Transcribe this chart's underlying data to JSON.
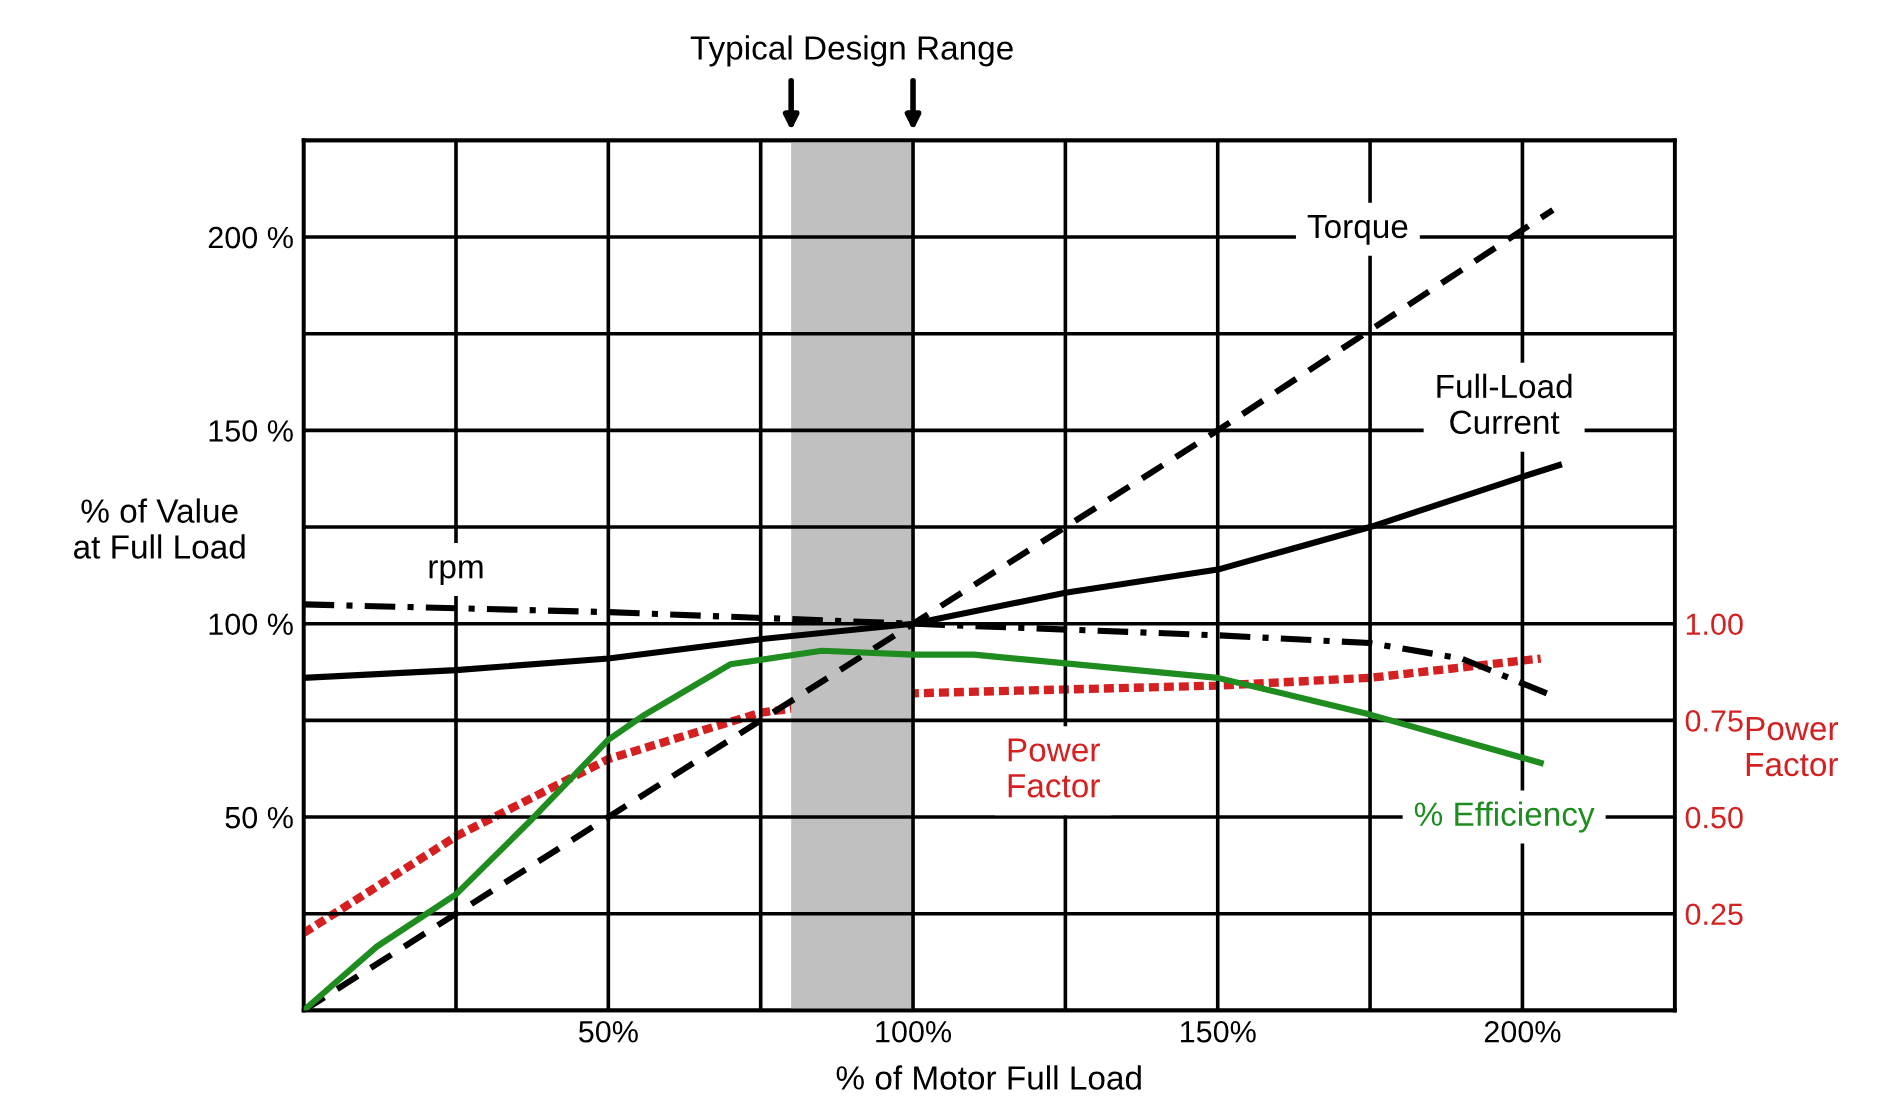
{
  "chart_data": {
    "type": "line",
    "xlabel": "% of Motor Full Load",
    "ylabel": "% of Value at Full Load",
    "y2label": "Power Factor",
    "xlim": [
      0,
      225
    ],
    "ylim": [
      0,
      225
    ],
    "y2lim": [
      0,
      2.25
    ],
    "xticks": [
      {
        "value": 25,
        "label": null
      },
      {
        "value": 50,
        "label": "50%"
      },
      {
        "value": 75,
        "label": null
      },
      {
        "value": 100,
        "label": "100%"
      },
      {
        "value": 125,
        "label": null
      },
      {
        "value": 150,
        "label": "150%"
      },
      {
        "value": 175,
        "label": null
      },
      {
        "value": 200,
        "label": "200%"
      }
    ],
    "yticks": [
      {
        "value": 25,
        "label": null
      },
      {
        "value": 50,
        "label": "50 %"
      },
      {
        "value": 75,
        "label": null
      },
      {
        "value": 100,
        "label": "100 %"
      },
      {
        "value": 125,
        "label": null
      },
      {
        "value": 150,
        "label": "150 %"
      },
      {
        "value": 175,
        "label": null
      },
      {
        "value": 200,
        "label": "200 %"
      }
    ],
    "y2ticks": [
      {
        "value": 0.25,
        "label": "0.25"
      },
      {
        "value": 0.5,
        "label": "0.50"
      },
      {
        "value": 0.75,
        "label": "0.75"
      },
      {
        "value": 1.0,
        "label": "1.00"
      }
    ],
    "grid": true,
    "legend": false,
    "marker": "none",
    "series": [
      {
        "name": "Torque",
        "color": "#000000",
        "line_style": "dashed",
        "x": [
          0,
          50,
          100,
          150,
          205
        ],
        "values": [
          0,
          50,
          100,
          150,
          207
        ]
      },
      {
        "name": "Full-Load Current",
        "color": "#000000",
        "line_style": "solid",
        "x": [
          0,
          25,
          50,
          75,
          100,
          125,
          150,
          175,
          200,
          206
        ],
        "values": [
          86,
          88,
          91,
          96,
          100,
          108,
          114,
          125,
          138,
          141
        ]
      },
      {
        "name": "rpm",
        "color": "#000000",
        "line_style": "dashdot",
        "x": [
          0,
          50,
          100,
          150,
          175,
          190,
          204
        ],
        "values": [
          105,
          103,
          100,
          97,
          95,
          91,
          82
        ]
      },
      {
        "name": "Power Factor",
        "color": "#d42020",
        "line_style": "dotted",
        "axis": "y2",
        "x": [
          0,
          25,
          50,
          75,
          100,
          150,
          175,
          203
        ],
        "values": [
          0.2,
          0.45,
          0.65,
          0.77,
          0.82,
          0.84,
          0.86,
          0.91
        ]
      },
      {
        "name": "% Efficiency",
        "color": "#1e8c1e",
        "line_style": "solid",
        "x": [
          0,
          12,
          25,
          37.5,
          50,
          56,
          70,
          85,
          100,
          110,
          150,
          175,
          203
        ],
        "values": [
          0,
          16.5,
          30,
          49.5,
          70,
          76.5,
          89.5,
          93,
          92,
          92,
          86,
          76.5,
          64
        ]
      }
    ],
    "bands": [
      {
        "axis": "x",
        "from": 80,
        "to": 100,
        "label": "Typical Design Range",
        "color": "#c0c0c0"
      }
    ]
  }
}
